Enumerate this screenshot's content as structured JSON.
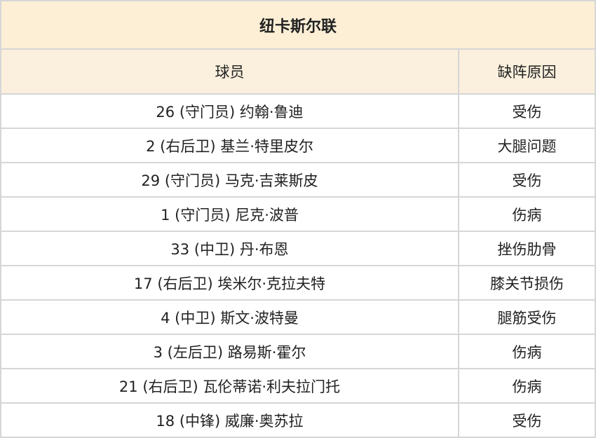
{
  "title": "纽卡斯尔联",
  "headers": {
    "player": "球员",
    "reason": "缺阵原因"
  },
  "rows": [
    {
      "player": "26 (守门员) 约翰·鲁迪",
      "reason": "受伤"
    },
    {
      "player": "2 (右后卫) 基兰·特里皮尔",
      "reason": "大腿问题"
    },
    {
      "player": "29 (守门员) 马克·吉莱斯皮",
      "reason": "受伤"
    },
    {
      "player": "1 (守门员) 尼克·波普",
      "reason": "伤病"
    },
    {
      "player": "33 (中卫) 丹·布恩",
      "reason": "挫伤肋骨"
    },
    {
      "player": "17 (右后卫) 埃米尔·克拉夫特",
      "reason": "膝关节损伤"
    },
    {
      "player": "4 (中卫) 斯文·波特曼",
      "reason": "腿筋受伤"
    },
    {
      "player": "3 (左后卫) 路易斯·霍尔",
      "reason": "伤病"
    },
    {
      "player": "21 (右后卫) 瓦伦蒂诺·利夫拉门托",
      "reason": "伤病"
    },
    {
      "player": "18 (中锋) 威廉·奥苏拉",
      "reason": "受伤"
    }
  ]
}
